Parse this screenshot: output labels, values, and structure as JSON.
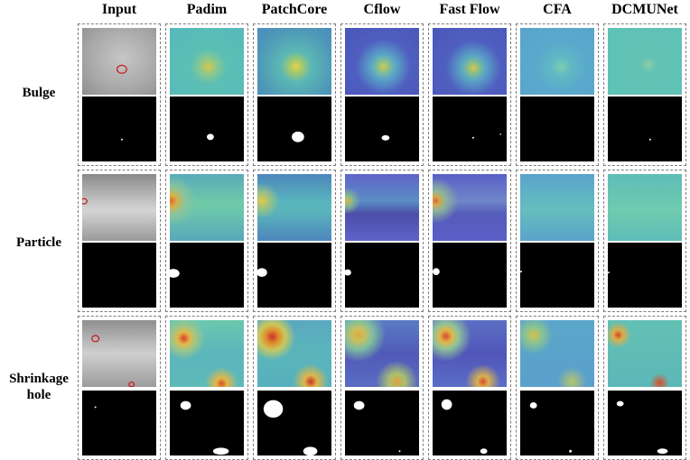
{
  "columns": [
    "Input",
    "Padim",
    "PatchCore",
    "Cflow",
    "Fast Flow",
    "CFA",
    "DCMUNet"
  ],
  "rows": [
    {
      "label_lines": [
        "Bulge"
      ]
    },
    {
      "label_lines": [
        "Particle"
      ]
    },
    {
      "label_lines": [
        "Shrinkage",
        "hole"
      ]
    }
  ],
  "colors": {
    "heatmap_teal": "#5fc4b8",
    "heatmap_blue": "#4f5fc0",
    "hot_spot": "#e0c03a",
    "hot_spot_red": "#d0402a",
    "annotation_circle": "#c81414",
    "mask_bg": "#000000",
    "mask_fg": "#ffffff",
    "frame_border": "#7d7d7d"
  }
}
